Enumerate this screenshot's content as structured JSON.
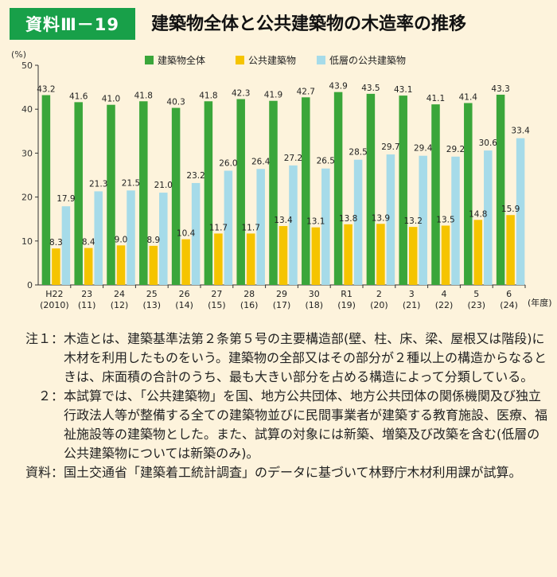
{
  "header": {
    "badge": "資料Ⅲ－19",
    "title": "建築物全体と公共建築物の木造率の推移"
  },
  "chart_data": {
    "type": "bar",
    "y_unit": "(%)",
    "x_unit": "(年度)",
    "ylim": [
      0,
      50
    ],
    "yticks": [
      0,
      10,
      20,
      30,
      40,
      50
    ],
    "legend_position": "top",
    "categories": [
      {
        "label": "H22",
        "sub": "(2010)"
      },
      {
        "label": "23",
        "sub": "(11)"
      },
      {
        "label": "24",
        "sub": "(12)"
      },
      {
        "label": "25",
        "sub": "(13)"
      },
      {
        "label": "26",
        "sub": "(14)"
      },
      {
        "label": "27",
        "sub": "(15)"
      },
      {
        "label": "28",
        "sub": "(16)"
      },
      {
        "label": "29",
        "sub": "(17)"
      },
      {
        "label": "30",
        "sub": "(18)"
      },
      {
        "label": "R1",
        "sub": "(19)"
      },
      {
        "label": "2",
        "sub": "(20)"
      },
      {
        "label": "3",
        "sub": "(21)"
      },
      {
        "label": "4",
        "sub": "(22)"
      },
      {
        "label": "5",
        "sub": "(23)"
      },
      {
        "label": "6",
        "sub": "(24)"
      }
    ],
    "series": [
      {
        "name": "建築物全体",
        "color": "#3aa63a",
        "values": [
          43.2,
          41.6,
          41.0,
          41.8,
          40.3,
          41.8,
          42.3,
          41.9,
          42.7,
          43.9,
          43.5,
          43.1,
          41.1,
          41.4,
          43.3
        ]
      },
      {
        "name": "公共建築物",
        "color": "#f5c400",
        "values": [
          8.3,
          8.4,
          9.0,
          8.9,
          10.4,
          11.7,
          11.7,
          13.4,
          13.1,
          13.8,
          13.9,
          13.2,
          13.5,
          14.8,
          15.9
        ]
      },
      {
        "name": "低層の公共建築物",
        "color": "#a6dbe9",
        "values": [
          17.9,
          21.3,
          21.5,
          21.0,
          23.2,
          26.0,
          26.4,
          27.2,
          26.5,
          28.5,
          29.7,
          29.4,
          29.2,
          30.6,
          33.4
        ]
      }
    ]
  },
  "notes": [
    {
      "label": "注１：",
      "text": "木造とは、建築基準法第２条第５号の主要構造部(壁、柱、床、梁、屋根又は階段)に木材を利用したものをいう。建築物の全部又はその部分が２種以上の構造からなるときは、床面積の合計のうち、最も大きい部分を占める構造によって分類している。"
    },
    {
      "label": "２：",
      "text": "本試算では、「公共建築物」を国、地方公共団体、地方公共団体の関係機関及び独立行政法人等が整備する全ての建築物並びに民間事業者が建築する教育施設、医療、福祉施設等の建築物とした。また、試算の対象には新築、増築及び改築を含む(低層の公共建築物については新築のみ)。"
    },
    {
      "label": "資料：",
      "text": "国土交通省「建築着工統計調査」のデータに基づいて林野庁木材利用課が試算。"
    }
  ]
}
